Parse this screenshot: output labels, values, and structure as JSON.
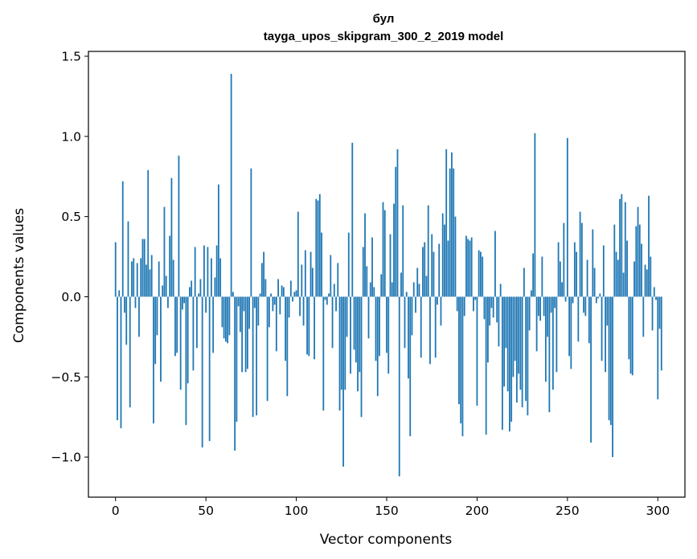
{
  "chart_data": {
    "type": "bar",
    "title": "бул",
    "subtitle": "tayga_upos_skipgram_300_2_2019 model",
    "xlabel": "Vector components",
    "ylabel": "Components values",
    "xlim": [
      -15,
      315
    ],
    "ylim": [
      -1.25,
      1.53
    ],
    "xticks": [
      0,
      50,
      100,
      150,
      200,
      250,
      300
    ],
    "xtick_labels": [
      "0",
      "50",
      "100",
      "150",
      "200",
      "250",
      "300"
    ],
    "yticks": [
      -1.0,
      -0.5,
      0.0,
      0.5,
      1.0,
      1.5
    ],
    "ytick_labels": [
      "−1.0",
      "−0.5",
      "0.0",
      "0.5",
      "1.0",
      "1.5"
    ],
    "bar_color": "#1f77b4",
    "grid": false,
    "values": [
      0.34,
      -0.77,
      0.04,
      -0.82,
      0.72,
      -0.1,
      -0.3,
      0.47,
      -0.69,
      0.22,
      0.24,
      -0.07,
      0.21,
      -0.25,
      0.24,
      0.36,
      0.36,
      0.2,
      0.79,
      0.17,
      0.26,
      -0.79,
      -0.42,
      -0.24,
      0.22,
      -0.53,
      0.07,
      0.56,
      0.13,
      -0.07,
      0.38,
      0.74,
      0.23,
      -0.37,
      -0.35,
      0.88,
      -0.58,
      -0.08,
      -0.04,
      -0.8,
      -0.54,
      0.06,
      0.1,
      -0.46,
      0.31,
      -0.32,
      0.02,
      0.11,
      -0.94,
      0.32,
      -0.1,
      0.31,
      -0.9,
      0.24,
      -0.35,
      0.12,
      0.32,
      0.7,
      0.24,
      -0.19,
      -0.26,
      -0.28,
      -0.29,
      -0.24,
      1.39,
      0.03,
      -0.96,
      -0.78,
      -0.06,
      -0.22,
      -0.47,
      -0.09,
      -0.47,
      -0.45,
      -0.2,
      0.8,
      -0.75,
      -0.07,
      -0.74,
      -0.18,
      0.02,
      0.21,
      0.28,
      0.11,
      -0.65,
      -0.19,
      0.02,
      -0.09,
      -0.05,
      -0.34,
      0.11,
      -0.11,
      0.07,
      0.06,
      -0.4,
      -0.62,
      -0.13,
      0.1,
      -0.03,
      0.03,
      0.04,
      0.53,
      -0.12,
      0.2,
      -0.18,
      0.29,
      -0.36,
      -0.37,
      0.28,
      0.18,
      -0.39,
      0.61,
      0.6,
      0.64,
      0.4,
      -0.71,
      -0.02,
      -0.05,
      0.02,
      0.26,
      -0.32,
      0.08,
      -0.09,
      0.21,
      -0.71,
      -0.58,
      -1.06,
      -0.58,
      -0.25,
      0.4,
      -0.48,
      0.96,
      -0.33,
      -0.41,
      -0.59,
      -0.47,
      -0.75,
      0.31,
      0.52,
      0.19,
      -0.26,
      0.09,
      0.37,
      0.06,
      -0.4,
      -0.62,
      -0.37,
      0.14,
      0.59,
      0.54,
      -0.35,
      -0.48,
      0.39,
      0.09,
      0.58,
      0.81,
      0.92,
      -1.12,
      0.15,
      0.57,
      -0.32,
      0.03,
      -0.51,
      -0.87,
      -0.24,
      0.09,
      -0.1,
      0.18,
      0.08,
      -0.38,
      0.31,
      0.34,
      0.13,
      0.57,
      -0.42,
      0.39,
      0.28,
      -0.38,
      -0.05,
      0.33,
      -0.18,
      0.52,
      0.45,
      0.92,
      0.35,
      0.8,
      0.9,
      0.8,
      0.5,
      -0.09,
      -0.67,
      -0.79,
      -0.87,
      -0.12,
      0.38,
      0.36,
      0.35,
      0.37,
      -0.09,
      -0.02,
      -0.68,
      0.29,
      0.28,
      0.25,
      -0.14,
      -0.86,
      -0.41,
      -0.18,
      -0.07,
      -0.13,
      0.41,
      -0.16,
      -0.31,
      0.08,
      -0.83,
      -0.56,
      -0.32,
      -0.59,
      -0.84,
      -0.78,
      -0.5,
      -0.4,
      -0.66,
      -0.48,
      -0.58,
      -0.69,
      0.18,
      -0.65,
      -0.74,
      -0.21,
      0.04,
      0.27,
      1.02,
      -0.34,
      -0.12,
      -0.15,
      0.25,
      -0.12,
      -0.53,
      -0.25,
      -0.72,
      -0.1,
      -0.58,
      -0.07,
      -0.47,
      0.34,
      0.22,
      0.09,
      0.46,
      -0.03,
      0.99,
      -0.37,
      -0.45,
      -0.04,
      0.34,
      0.28,
      -0.28,
      0.53,
      0.46,
      -0.1,
      -0.12,
      0.23,
      -0.29,
      -0.91,
      0.42,
      0.18,
      -0.04,
      -0.01,
      0.02,
      -0.4,
      0.32,
      -0.47,
      -0.18,
      -0.77,
      -0.8,
      -1.0,
      0.45,
      0.28,
      0.23,
      0.61,
      0.64,
      0.15,
      0.59,
      0.35,
      -0.39,
      -0.48,
      -0.49,
      0.22,
      0.44,
      0.56,
      0.45,
      0.33,
      -0.25,
      0.2,
      0.17,
      0.63,
      0.25,
      -0.21,
      0.06,
      -0.02,
      -0.64,
      -0.2,
      -0.46
    ]
  }
}
